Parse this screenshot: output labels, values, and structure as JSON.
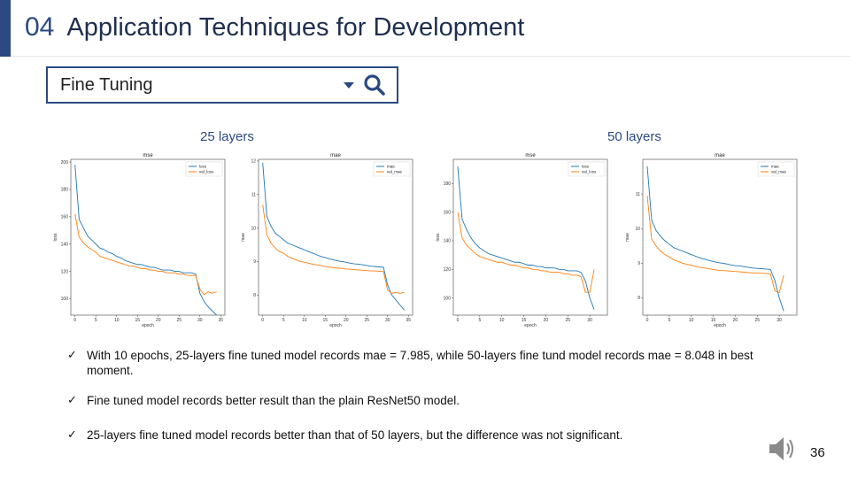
{
  "header": {
    "section_number": "04",
    "title": "Application Techniques for Development"
  },
  "search": {
    "value": "Fine Tuning"
  },
  "headings": {
    "left": "25 layers",
    "right": "50 layers"
  },
  "colors": {
    "accent": "#2b4a82",
    "train": "#1f77b4",
    "val": "#ff7f0e"
  },
  "chart_data": [
    {
      "type": "line",
      "title": "mse",
      "xlabel": "epoch",
      "ylabel": "loss",
      "xlim": [
        -1,
        36
      ],
      "ylim": [
        88,
        202
      ],
      "xticks": [
        0,
        5,
        10,
        15,
        20,
        25,
        30,
        35
      ],
      "yticks": [
        100,
        120,
        140,
        160,
        180,
        200
      ],
      "legend": "top-right",
      "series": [
        {
          "name": "loss",
          "values": [
            198,
            158,
            152,
            146,
            143,
            140,
            137,
            136,
            134,
            133,
            131,
            130,
            128,
            127,
            126,
            125,
            125,
            124,
            123,
            123,
            122,
            121,
            121,
            121,
            120,
            120,
            119,
            119,
            119,
            118,
            104,
            98,
            94,
            91,
            88
          ]
        },
        {
          "name": "val_loss",
          "values": [
            162,
            145,
            141,
            138,
            136,
            134,
            131,
            130,
            129,
            128,
            127,
            126,
            125,
            124,
            124,
            123,
            122,
            122,
            121,
            121,
            120,
            120,
            119,
            119,
            119,
            118,
            118,
            117,
            117,
            117,
            107,
            103,
            105,
            104,
            105
          ]
        }
      ]
    },
    {
      "type": "line",
      "title": "mae",
      "xlabel": "epoch",
      "ylabel": "mae",
      "xlim": [
        -1,
        36
      ],
      "ylim": [
        7.4,
        12.05
      ],
      "xticks": [
        0,
        5,
        10,
        15,
        20,
        25,
        30,
        35
      ],
      "yticks": [
        8,
        9,
        10,
        11,
        12
      ],
      "legend": "top-right",
      "series": [
        {
          "name": "mae",
          "values": [
            11.95,
            10.35,
            10.05,
            9.85,
            9.75,
            9.65,
            9.55,
            9.5,
            9.45,
            9.4,
            9.35,
            9.3,
            9.25,
            9.2,
            9.15,
            9.12,
            9.08,
            9.05,
            9.02,
            9.0,
            8.98,
            8.95,
            8.93,
            8.92,
            8.9,
            8.88,
            8.86,
            8.85,
            8.84,
            8.83,
            8.3,
            8.0,
            7.85,
            7.7,
            7.55
          ]
        },
        {
          "name": "val_mae",
          "values": [
            10.7,
            9.8,
            9.55,
            9.4,
            9.3,
            9.25,
            9.15,
            9.1,
            9.05,
            9.0,
            8.98,
            8.95,
            8.92,
            8.9,
            8.88,
            8.85,
            8.83,
            8.82,
            8.8,
            8.8,
            8.78,
            8.77,
            8.76,
            8.75,
            8.74,
            8.73,
            8.72,
            8.72,
            8.71,
            8.7,
            8.15,
            8.05,
            8.08,
            8.05,
            8.08
          ]
        }
      ]
    },
    {
      "type": "line",
      "title": "mse",
      "xlabel": "epoch",
      "ylabel": "loss",
      "xlim": [
        -1,
        34
      ],
      "ylim": [
        88,
        197
      ],
      "xticks": [
        0,
        5,
        10,
        15,
        20,
        25,
        30
      ],
      "yticks": [
        100,
        120,
        140,
        160,
        180
      ],
      "legend": "top-right",
      "series": [
        {
          "name": "loss",
          "values": [
            192,
            155,
            148,
            142,
            138,
            135,
            133,
            131,
            130,
            129,
            128,
            127,
            126,
            125,
            125,
            124,
            123,
            123,
            122,
            122,
            121,
            121,
            121,
            120,
            120,
            119,
            119,
            119,
            118,
            112,
            100,
            92
          ]
        },
        {
          "name": "val_loss",
          "values": [
            160,
            142,
            137,
            134,
            131,
            129,
            128,
            127,
            126,
            125,
            125,
            124,
            123,
            123,
            122,
            121,
            121,
            120,
            120,
            119,
            119,
            118,
            118,
            118,
            117,
            117,
            116,
            116,
            115,
            104,
            104,
            120
          ]
        }
      ]
    },
    {
      "type": "line",
      "title": "mae",
      "xlabel": "epoch",
      "ylabel": "mae",
      "xlim": [
        -1,
        34
      ],
      "ylim": [
        7.5,
        12.0
      ],
      "xticks": [
        0,
        5,
        10,
        15,
        20,
        25,
        30
      ],
      "yticks": [
        8,
        9,
        10,
        11
      ],
      "legend": "top-right",
      "series": [
        {
          "name": "mae",
          "values": [
            11.8,
            10.25,
            9.95,
            9.78,
            9.65,
            9.55,
            9.45,
            9.4,
            9.35,
            9.3,
            9.25,
            9.2,
            9.15,
            9.12,
            9.08,
            9.05,
            9.02,
            9.0,
            8.98,
            8.95,
            8.93,
            8.92,
            8.9,
            8.88,
            8.86,
            8.85,
            8.84,
            8.83,
            8.82,
            8.5,
            8.0,
            7.62
          ]
        },
        {
          "name": "val_mae",
          "values": [
            10.95,
            9.7,
            9.5,
            9.35,
            9.25,
            9.18,
            9.1,
            9.05,
            9.0,
            8.97,
            8.94,
            8.91,
            8.88,
            8.86,
            8.84,
            8.82,
            8.8,
            8.79,
            8.78,
            8.77,
            8.76,
            8.75,
            8.74,
            8.73,
            8.72,
            8.72,
            8.71,
            8.7,
            8.69,
            8.2,
            8.15,
            8.65
          ]
        }
      ]
    }
  ],
  "bullets": [
    "With 10 epochs, 25-layers fine tuned model records mae = 7.985, while 50-layers fine tund model records mae = 8.048 in best moment.",
    "Fine tuned model records better result than the plain ResNet50 model.",
    "25-layers fine tuned model records better than that of 50 layers, but the difference was not significant."
  ],
  "check_mark": "✓",
  "page_number": "36"
}
